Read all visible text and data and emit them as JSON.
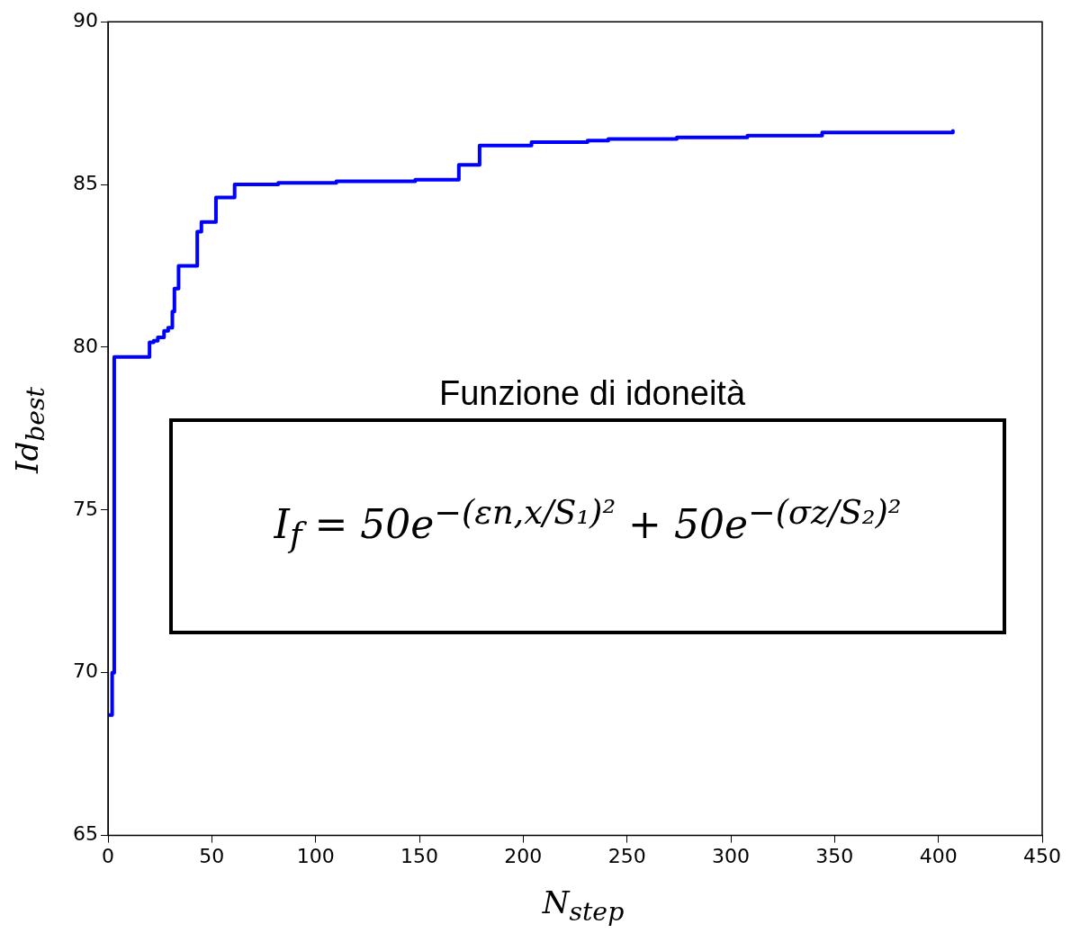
{
  "chart_data": {
    "type": "step",
    "xlabel": "N$_{step}$",
    "ylabel": "Id$_{best}$",
    "annotations": [
      "Funzione di idoneità",
      "I$_{f}$ = 50e$^{−(εn,x/S₁)²}$ + 50e$^{−(σz/S₂)²}$"
    ],
    "series": [
      {
        "color": "#0000ff",
        "x": [
          0,
          1,
          2,
          3,
          20,
          22,
          24,
          27,
          29,
          31,
          32,
          34,
          43,
          45,
          52,
          61,
          82,
          110,
          148,
          169,
          179,
          204,
          231,
          241,
          274,
          308,
          344,
          375,
          407
        ],
        "values": [
          68.7,
          68.7,
          70.0,
          79.7,
          80.15,
          80.2,
          80.3,
          80.5,
          80.6,
          81.1,
          81.8,
          82.5,
          83.55,
          83.85,
          84.6,
          85.0,
          85.05,
          85.1,
          85.15,
          85.6,
          86.2,
          86.3,
          86.35,
          86.4,
          86.45,
          86.5,
          86.6,
          86.6,
          86.65
        ]
      }
    ],
    "xlim": [
      0,
      450
    ],
    "xticks": [
      0,
      50,
      100,
      150,
      200,
      250,
      300,
      350,
      400,
      450
    ],
    "ylim": [
      65,
      90
    ],
    "yticks": [
      65,
      70,
      75,
      80,
      85,
      90
    ],
    "grid": false,
    "legend": false,
    "line_style": "solid",
    "marker": "none"
  }
}
